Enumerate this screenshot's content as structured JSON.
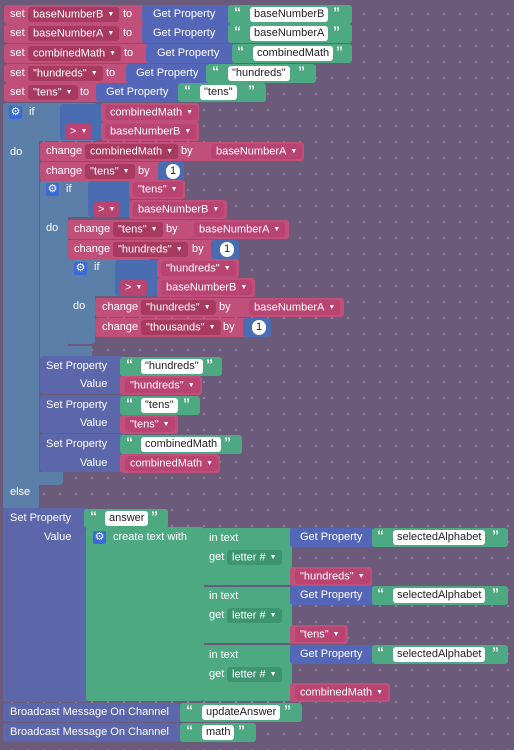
{
  "colors": {
    "background": "#6b5a7a",
    "variables": "#c0507a",
    "property": "#5466b8",
    "text": "#4ca982",
    "control": "#5b7fa8",
    "math": "#4a6cb0"
  },
  "kw": {
    "set": "set",
    "to": "to",
    "get_property": "Get Property",
    "set_property": "Set Property",
    "value": "Value",
    "change": "change",
    "by": "by",
    "if": "if",
    "do": "do",
    "else": "else",
    "gt": ">",
    "in_text": "in text",
    "get": "get",
    "letter": "letter #",
    "create_text_with": "create text with",
    "broadcast": "Broadcast Message On Channel",
    "open_quote": "“",
    "close_quote": "”"
  },
  "vars": {
    "baseNumberB": "baseNumberB",
    "baseNumberA": "baseNumberA",
    "combinedMath": "combinedMath",
    "hundreds": "\"hundreds\"",
    "tens": "\"tens\"",
    "thousands": "\"thousands\""
  },
  "strings": {
    "baseNumberB": "baseNumberB",
    "baseNumberA": "baseNumberA",
    "combinedMath": "combinedMath",
    "hundreds": "\"hundreds\"",
    "tens": "\"tens\"",
    "answer": "answer",
    "selectedAlphabet": "selectedAlphabet",
    "updateAnswer": "updateAnswer",
    "math": "math"
  },
  "numbers": {
    "one": "1"
  },
  "icons": {
    "gear": "gear-icon",
    "dropdown": "dropdown-arrow-icon"
  }
}
